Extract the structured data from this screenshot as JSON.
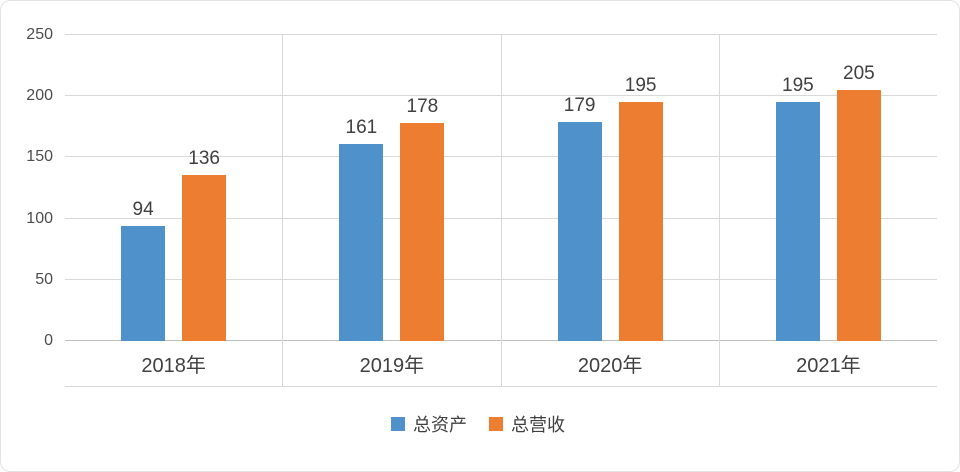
{
  "chart_data": {
    "type": "bar",
    "categories": [
      "2018年",
      "2019年",
      "2020年",
      "2021年"
    ],
    "series": [
      {
        "name": "总资产",
        "color": "#4E91CB",
        "values": [
          94,
          161,
          179,
          195
        ]
      },
      {
        "name": "总营收",
        "color": "#ED7D31",
        "values": [
          136,
          178,
          195,
          205
        ]
      }
    ],
    "title": "",
    "xlabel": "",
    "ylabel": "",
    "ylim": [
      0,
      250
    ],
    "yticks": [
      0,
      50,
      100,
      150,
      200,
      250
    ],
    "grid": true,
    "legend_position": "bottom",
    "colors": {
      "gridline": "#d9d9d9",
      "axis_line": "#bfbfbf",
      "tick_text": "#4d4d4d",
      "label_text": "#404040"
    }
  }
}
